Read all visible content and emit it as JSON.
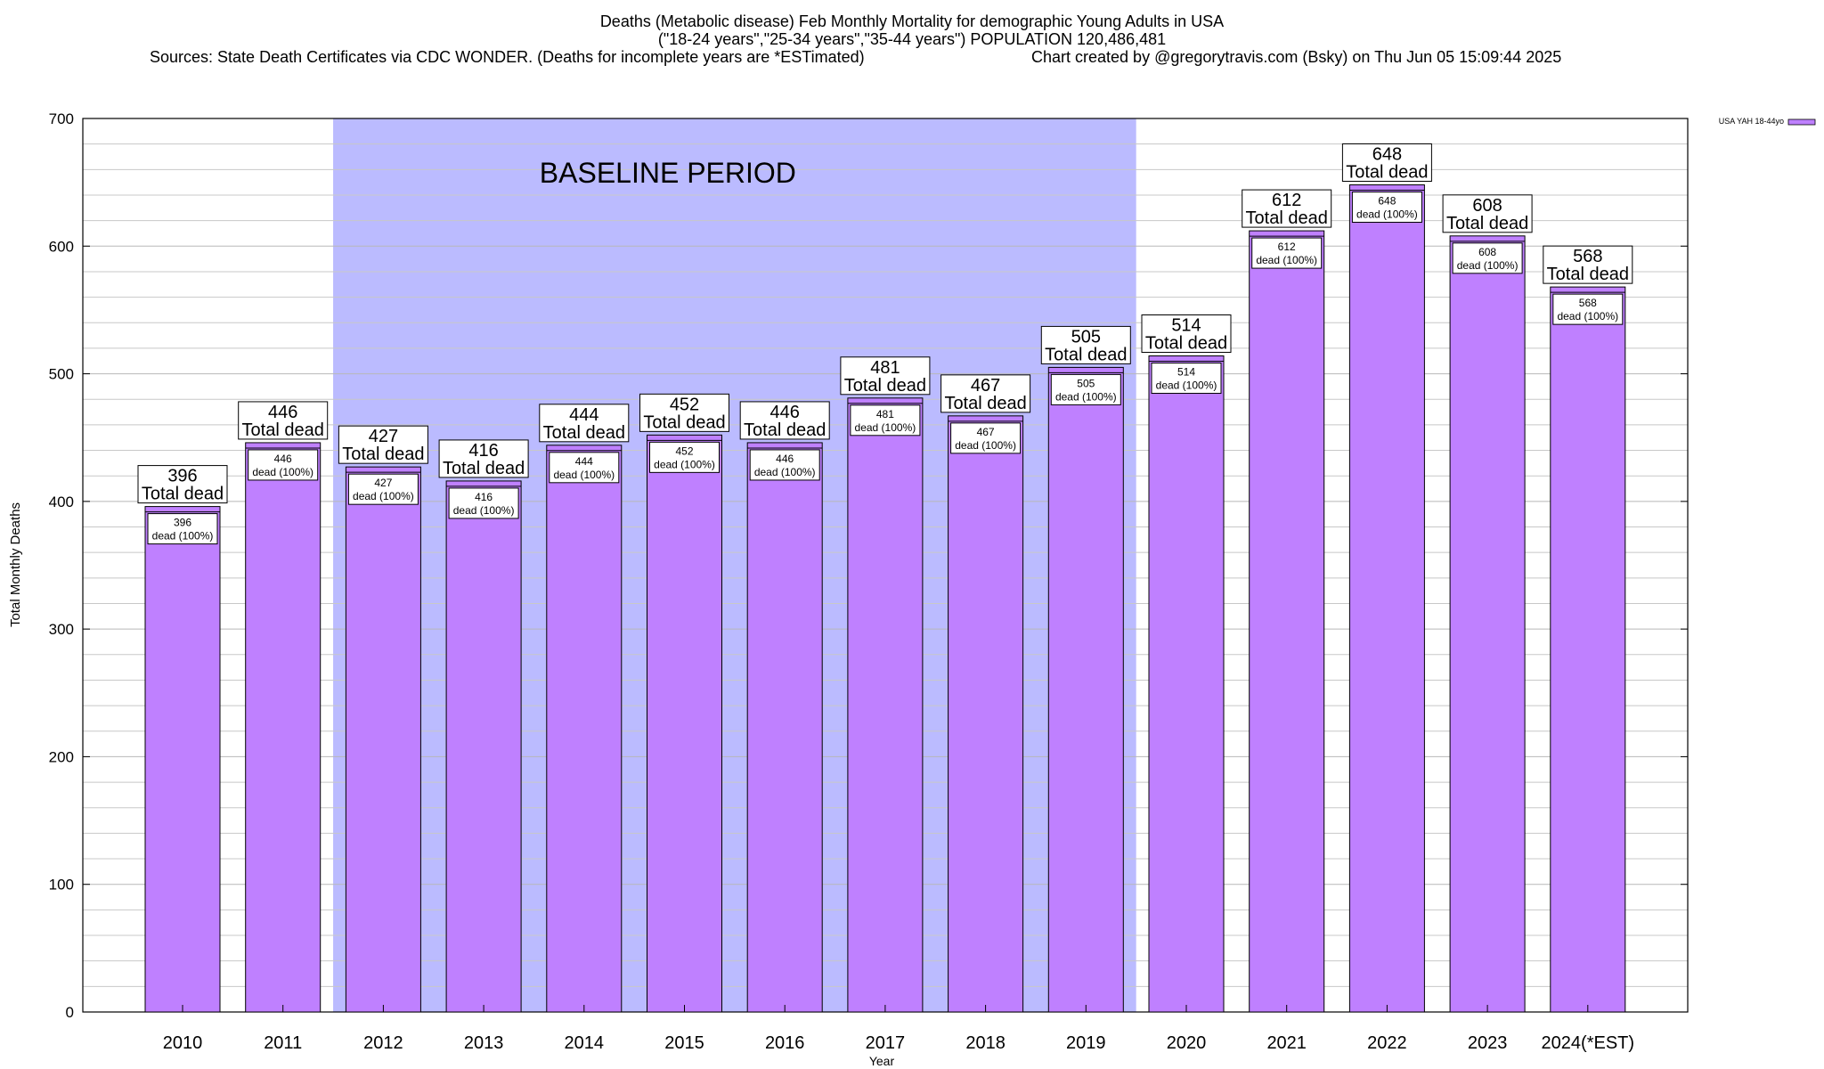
{
  "title": {
    "line1": "Deaths (Metabolic disease) Feb Monthly Mortality for demographic Young Adults in USA",
    "line2": "(\"18-24 years\",\"25-34 years\",\"35-44 years\") POPULATION 120,486,481",
    "line3_left": "Sources: State Death Certificates via CDC WONDER. (Deaths for incomplete years are *ESTimated)",
    "line3_right": "Chart created by @gregorytravis.com (Bsky) on Thu Jun 05 15:09:44 2025"
  },
  "colors": {
    "bar_fill": "#bf80ff",
    "baseline_band": "#bbbbff",
    "grid": "#c8c8c8"
  },
  "chart_data": {
    "type": "bar",
    "categories": [
      "2010",
      "2011",
      "2012",
      "2013",
      "2014",
      "2015",
      "2016",
      "2017",
      "2018",
      "2019",
      "2020",
      "2021",
      "2022",
      "2023",
      "2024(*EST)"
    ],
    "series": [
      {
        "name": "USA YAH 18-44yo",
        "values": [
          396,
          446,
          427,
          416,
          444,
          452,
          446,
          481,
          467,
          505,
          514,
          612,
          648,
          608,
          568
        ]
      }
    ],
    "xlabel": "Year",
    "ylabel": "Total Monthly Deaths",
    "ylim": [
      0,
      700
    ],
    "yticks": [
      0,
      100,
      200,
      300,
      400,
      500,
      600,
      700
    ],
    "grid": true,
    "legend_position": "top-right",
    "baseline_band": {
      "from_category": "2012",
      "to_category": "2019",
      "label": "BASELINE PERIOD"
    },
    "top_label_text": "Total dead",
    "inner_label_text": "dead (100%)"
  }
}
